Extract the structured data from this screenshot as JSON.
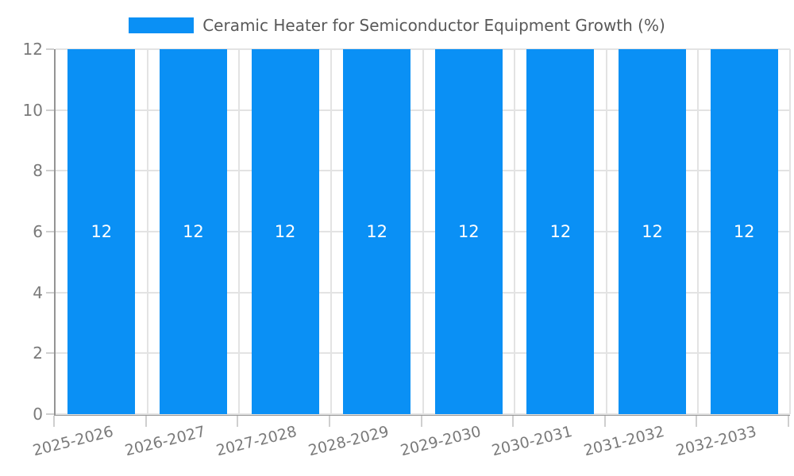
{
  "legend": {
    "label": "Ceramic Heater for Semiconductor Equipment Growth (%)"
  },
  "colors": {
    "bar": "#0a90f5",
    "grid": "#e3e3e3",
    "axis_spine": "#949494",
    "tick_mark": "#cfcfcf",
    "tick_label": "#7a7a7a",
    "legend_text": "#595959",
    "bar_label": "#ffffff",
    "background": "#ffffff"
  },
  "chart_data": {
    "type": "bar",
    "title": "",
    "xlabel": "",
    "ylabel": "",
    "categories": [
      "2025-2026",
      "2026-2027",
      "2027-2028",
      "2028-2029",
      "2029-2030",
      "2030-2031",
      "2031-2032",
      "2032-2033"
    ],
    "series": [
      {
        "name": "Ceramic Heater for Semiconductor Equipment Growth (%)",
        "values": [
          12,
          12,
          12,
          12,
          12,
          12,
          12,
          12
        ]
      }
    ],
    "bar_labels": [
      "12",
      "12",
      "12",
      "12",
      "12",
      "12",
      "12",
      "12"
    ],
    "ylim": [
      0,
      12
    ],
    "yticks": [
      0,
      2,
      4,
      6,
      8,
      10,
      12
    ],
    "grid": true,
    "legend_position": "top-center",
    "x_tick_rotation_deg": -14
  }
}
